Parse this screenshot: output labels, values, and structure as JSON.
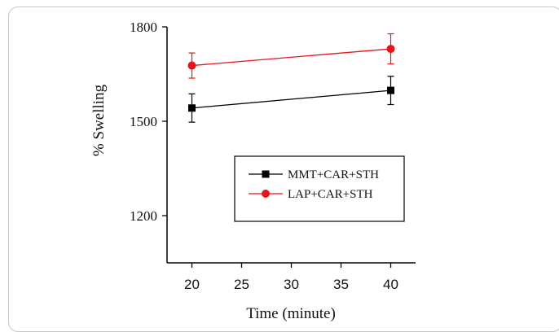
{
  "chart_data": {
    "type": "line",
    "xlabel": "Time (minute)",
    "ylabel": "% Swelling",
    "xlim": [
      17.5,
      42.5
    ],
    "ylim": [
      1050,
      1800
    ],
    "xticks": [
      20,
      25,
      30,
      35,
      40
    ],
    "yticks": [
      1200,
      1500,
      1800
    ],
    "legend_position": "center-right",
    "series": [
      {
        "name": "MMT+CAR+STH",
        "color": "#000000",
        "marker": "square",
        "x": [
          20,
          40
        ],
        "y": [
          1542,
          1598
        ],
        "error": [
          45,
          45
        ]
      },
      {
        "name": "LAP+CAR+STH",
        "color": "#e8141b",
        "marker": "circle",
        "x": [
          20,
          40
        ],
        "y": [
          1677,
          1730
        ],
        "error": [
          40,
          48
        ]
      }
    ]
  }
}
